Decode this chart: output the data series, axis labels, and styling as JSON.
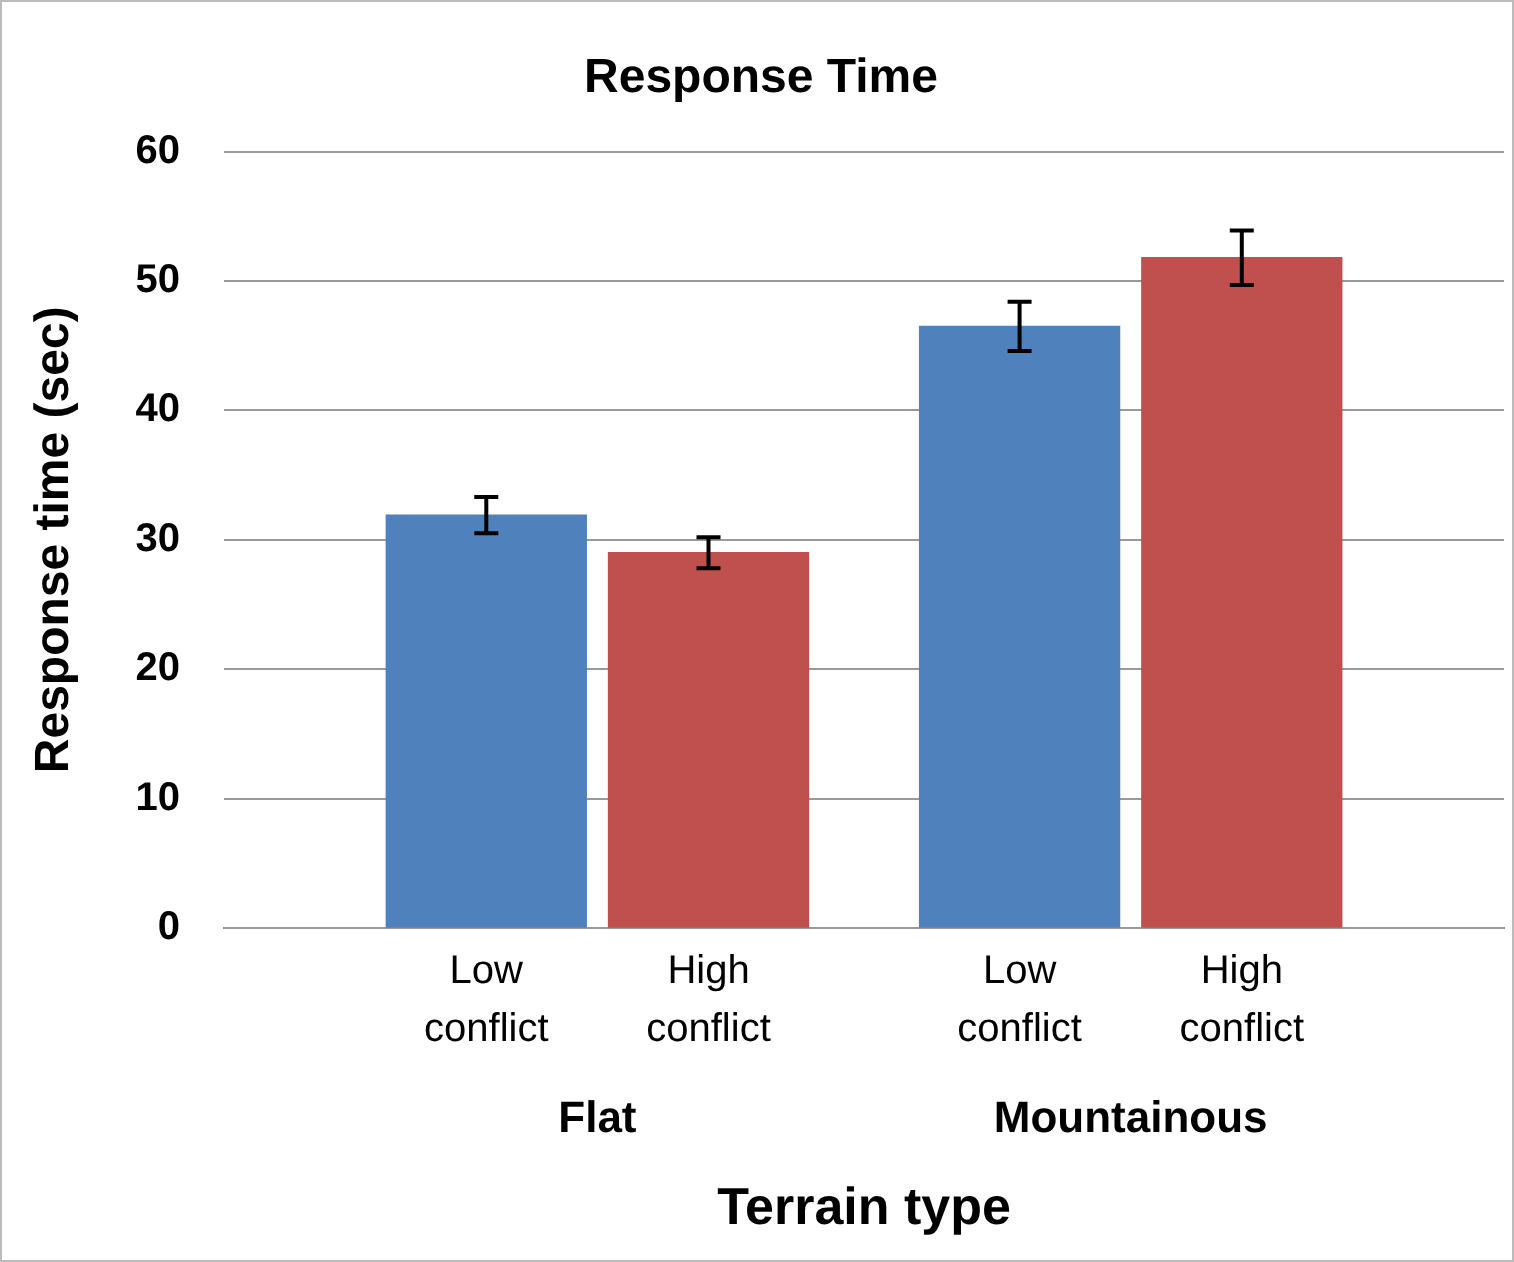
{
  "chart_data": {
    "type": "bar",
    "title": "Response Time",
    "xlabel": "Terrain type",
    "ylabel": "Response time (sec)",
    "categories": [
      "Low conflict",
      "High conflict",
      "Low conflict",
      "High conflict"
    ],
    "values": [
      31.9,
      29.0,
      46.5,
      51.8
    ],
    "errors": [
      1.4,
      1.2,
      1.9,
      2.1
    ],
    "colors": [
      "#4f81bd",
      "#c0504d",
      "#4f81bd",
      "#c0504d"
    ],
    "annotations": [
      "Flat",
      "Mountainous"
    ],
    "ylim": [
      0,
      60
    ],
    "yticks": [
      0,
      10,
      20,
      30,
      40,
      50,
      60
    ],
    "grid": "y",
    "legend": false
  }
}
